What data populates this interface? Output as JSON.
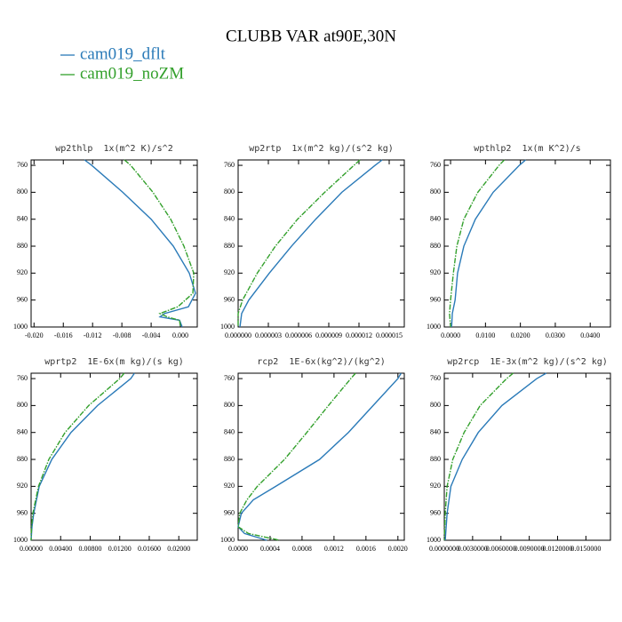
{
  "title": "CLUBB VAR at90E,30N",
  "series": [
    {
      "name": "cam019_dflt",
      "color": "#2a7ab8"
    },
    {
      "name": "cam019_noZM",
      "color": "#33a02c"
    }
  ],
  "chart_data": [
    {
      "type": "line",
      "title": "wp2thlp  1x(m^2 K)/s^2",
      "xlim": [
        -0.0204,
        0.0023
      ],
      "xticks": [
        {
          "value": -0.02,
          "label": "-0.020"
        },
        {
          "value": -0.016,
          "label": "-0.016"
        },
        {
          "value": -0.012,
          "label": "-0.012"
        },
        {
          "value": -0.008,
          "label": "-0.008"
        },
        {
          "value": -0.004,
          "label": "-0.004"
        },
        {
          "value": 0,
          "label": "0.000"
        }
      ],
      "ylim": [
        752,
        1000
      ],
      "invert_y": true,
      "yticks": [
        760,
        800,
        840,
        880,
        920,
        960,
        1000
      ],
      "y": [
        752,
        760,
        800,
        840,
        880,
        920,
        950,
        970,
        980,
        985,
        990,
        1000
      ],
      "values": [
        [
          -0.01309,
          -0.01212,
          -0.00788,
          -0.004,
          -0.00097,
          0.00121,
          0.00206,
          0.00109,
          -0.00218,
          -0.00279,
          -0.00012,
          0.00024
        ],
        [
          -0.00764,
          -0.00679,
          -0.00376,
          -0.00133,
          0.00048,
          0.00182,
          0.0017,
          -0.00036,
          -0.00279,
          -0.00182,
          -0.00012,
          0
        ]
      ]
    },
    {
      "type": "line",
      "title": "wp2rtp  1x(m^2 kg)/(s^2 kg)",
      "xlim": [
        0,
        1.65e-05
      ],
      "xticks": [
        {
          "value": 0,
          "label": "0.000000"
        },
        {
          "value": 3e-06,
          "label": "0.000003"
        },
        {
          "value": 6e-06,
          "label": "0.000006"
        },
        {
          "value": 9e-06,
          "label": "0.000009"
        },
        {
          "value": 1.2e-05,
          "label": "0.000012"
        },
        {
          "value": 1.5e-05,
          "label": "0.000015"
        }
      ],
      "ylim": [
        752,
        1000
      ],
      "invert_y": true,
      "yticks": [
        760,
        800,
        840,
        880,
        920,
        960,
        1000
      ],
      "y": [
        752,
        760,
        800,
        840,
        880,
        920,
        960,
        980,
        1000
      ],
      "values": [
        [
          1.43e-05,
          1.36e-05,
          1.03e-05,
          7.7e-06,
          5.3e-06,
          3.1e-06,
          1.06e-06,
          3.5e-07,
          1.8e-07
        ],
        [
          1.21e-05,
          1.15e-05,
          8.6e-06,
          5.9e-06,
          3.7e-06,
          1.9e-06,
          4.4e-07,
          0,
          0
        ]
      ]
    },
    {
      "type": "line",
      "title": "wpthlp2  1x(m K^2)/s",
      "xlim": [
        -0.0018,
        0.0458
      ],
      "xticks": [
        {
          "value": 0,
          "label": "0.0000"
        },
        {
          "value": 0.01,
          "label": "0.0100"
        },
        {
          "value": 0.02,
          "label": "0.0200"
        },
        {
          "value": 0.03,
          "label": "0.0300"
        },
        {
          "value": 0.04,
          "label": "0.0400"
        }
      ],
      "ylim": [
        752,
        1000
      ],
      "invert_y": true,
      "yticks": [
        760,
        800,
        840,
        880,
        920,
        960,
        1000
      ],
      "y": [
        752,
        760,
        800,
        840,
        880,
        920,
        960,
        980,
        1000
      ],
      "values": [
        [
          0.0215,
          0.0197,
          0.0122,
          0.0071,
          0.0038,
          0.002,
          0.0013,
          0.0005,
          0.0003
        ],
        [
          0.0154,
          0.0139,
          0.0078,
          0.0038,
          0.0018,
          0.0008,
          0,
          -0.0003,
          0
        ]
      ]
    },
    {
      "type": "line",
      "title": "wprtp2  1E-6x(m kg)/(s kg)",
      "xlim": [
        0,
        0.0225
      ],
      "xticks": [
        {
          "value": 0,
          "label": "0.00000"
        },
        {
          "value": 0.004,
          "label": "0.00400"
        },
        {
          "value": 0.008,
          "label": "0.00800"
        },
        {
          "value": 0.012,
          "label": "0.01200"
        },
        {
          "value": 0.016,
          "label": "0.01600"
        },
        {
          "value": 0.02,
          "label": "0.02000"
        }
      ],
      "ylim": [
        752,
        1000
      ],
      "invert_y": true,
      "yticks": [
        760,
        800,
        840,
        880,
        920,
        960,
        1000
      ],
      "y": [
        752,
        760,
        800,
        840,
        880,
        920,
        960,
        980,
        1000
      ],
      "values": [
        [
          0.014,
          0.0135,
          0.009,
          0.0054,
          0.0028,
          0.0011,
          0.00036,
          0.00012,
          0
        ],
        [
          0.0126,
          0.012,
          0.0078,
          0.0046,
          0.0024,
          0.001,
          0.00024,
          6e-05,
          0
        ]
      ]
    },
    {
      "type": "line",
      "title": "rcp2  1E-6x(kg^2)/(kg^2)",
      "xlim": [
        0,
        0.00208
      ],
      "xticks": [
        {
          "value": 0,
          "label": "0.0000"
        },
        {
          "value": 0.0004,
          "label": "0.0004"
        },
        {
          "value": 0.0008,
          "label": "0.0008"
        },
        {
          "value": 0.0012,
          "label": "0.0012"
        },
        {
          "value": 0.0016,
          "label": "0.0016"
        },
        {
          "value": 0.002,
          "label": "0.0020"
        }
      ],
      "ylim": [
        752,
        1000
      ],
      "invert_y": true,
      "yticks": [
        760,
        800,
        840,
        880,
        920,
        960,
        1000
      ],
      "y": [
        752,
        760,
        800,
        840,
        880,
        920,
        940,
        960,
        980,
        990,
        1000
      ],
      "values": [
        [
          0.00204,
          0.002,
          0.00169,
          0.00138,
          0.00102,
          0.00047,
          0.00019,
          4e-05,
          0,
          8e-05,
          0.00036
        ],
        [
          0.00147,
          0.00141,
          0.00113,
          0.00086,
          0.00058,
          0.00024,
          0.00011,
          2e-05,
          0,
          0.00013,
          0.00052
        ]
      ]
    },
    {
      "type": "line",
      "title": "wp2rcp  1E-3x(m^2 kg)/(s^2 kg)",
      "xlim": [
        0,
        0.0176
      ],
      "xticks": [
        {
          "value": 0,
          "label": "0.0000000"
        },
        {
          "value": 0.003,
          "label": "0.0030000"
        },
        {
          "value": 0.006,
          "label": "0.0060000"
        },
        {
          "value": 0.009,
          "label": "0.0090000"
        },
        {
          "value": 0.012,
          "label": "0.0120000"
        },
        {
          "value": 0.015,
          "label": "0.0150000"
        }
      ],
      "ylim": [
        752,
        1000
      ],
      "invert_y": true,
      "yticks": [
        760,
        800,
        840,
        880,
        920,
        960,
        1000
      ],
      "y": [
        752,
        760,
        800,
        840,
        880,
        920,
        960,
        1000
      ],
      "values": [
        [
          0.0108,
          0.0098,
          0.0061,
          0.0036,
          0.0019,
          0.0007,
          0.0003,
          0.0001
        ],
        [
          0.0073,
          0.0066,
          0.0038,
          0.0021,
          0.0009,
          0.0003,
          0.0001,
          0
        ]
      ]
    }
  ]
}
